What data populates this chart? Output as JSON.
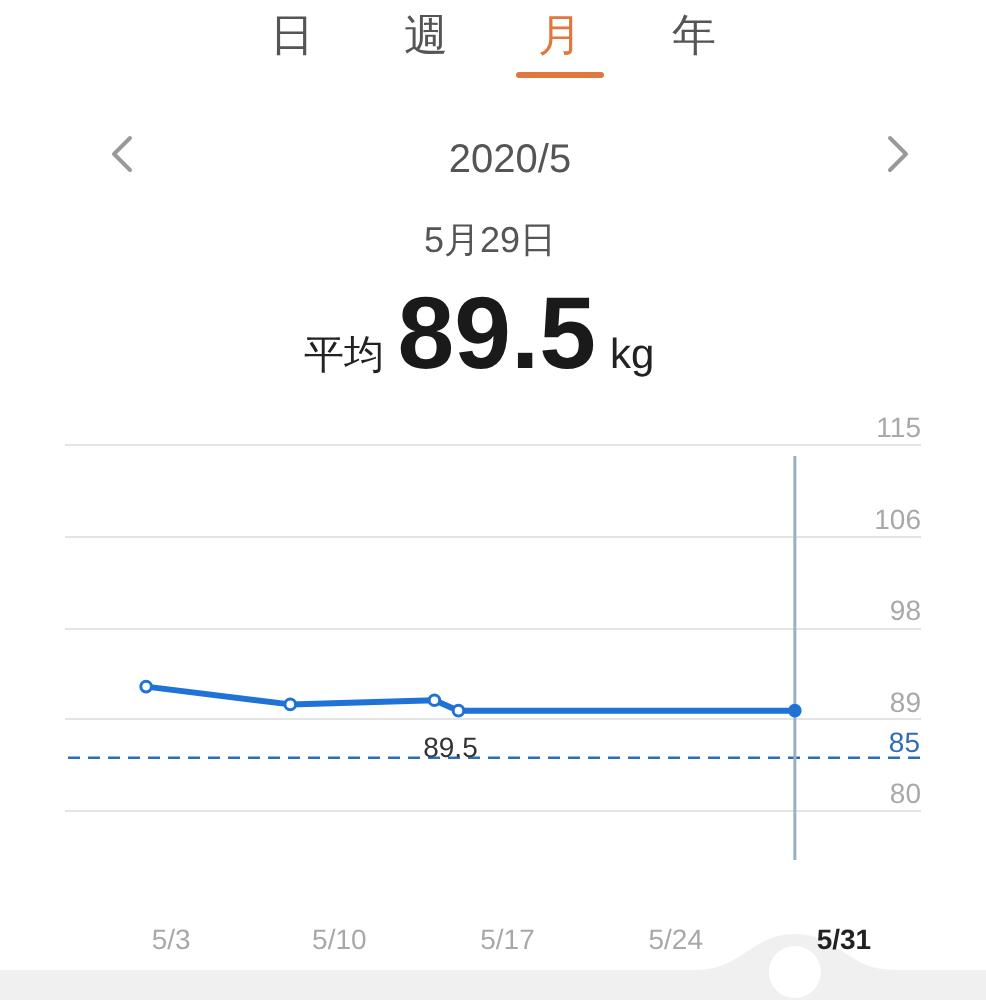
{
  "chart_data": {
    "type": "line",
    "title": "2020/5",
    "subtitle": "5月29日",
    "annotations": [
      "日",
      "週",
      "月",
      "年",
      "平均",
      "89.5",
      "kg"
    ],
    "x": [
      "2020-05-02",
      "2020-05-08",
      "2020-05-14",
      "2020-05-15",
      "2020-05-29"
    ],
    "values": [
      91.8,
      90.1,
      90.5,
      89.5,
      89.5
    ],
    "value_labels": [
      null,
      null,
      null,
      "89.5",
      null
    ],
    "color": "#1f72d6",
    "xlim": [
      "2020-04-28T14:00",
      "2020-06-03T05:00"
    ],
    "xticks": [
      {
        "value": "2020-05-03",
        "label": "5/3"
      },
      {
        "value": "2020-05-10",
        "label": "5/10"
      },
      {
        "value": "2020-05-17",
        "label": "5/17"
      },
      {
        "value": "2020-05-24",
        "label": "5/24"
      },
      {
        "value": "2020-05-31",
        "label": "5/31"
      }
    ],
    "ylim": [
      80,
      115
    ],
    "yticks": [
      80,
      {
        "value": 88.75,
        "label": "89"
      },
      {
        "value": 97.5,
        "label": "98"
      },
      {
        "value": 106.25,
        "label": "106"
      },
      115
    ],
    "ref_lines": [
      {
        "axis": "y",
        "value": 85,
        "label": "85",
        "color": "#2d6db5",
        "line_style": "dashed"
      },
      {
        "axis": "x",
        "value": "2020-05-29",
        "color": "#9aafc2"
      }
    ],
    "grid": "y",
    "marker": "circle",
    "line_style": "solid"
  }
}
